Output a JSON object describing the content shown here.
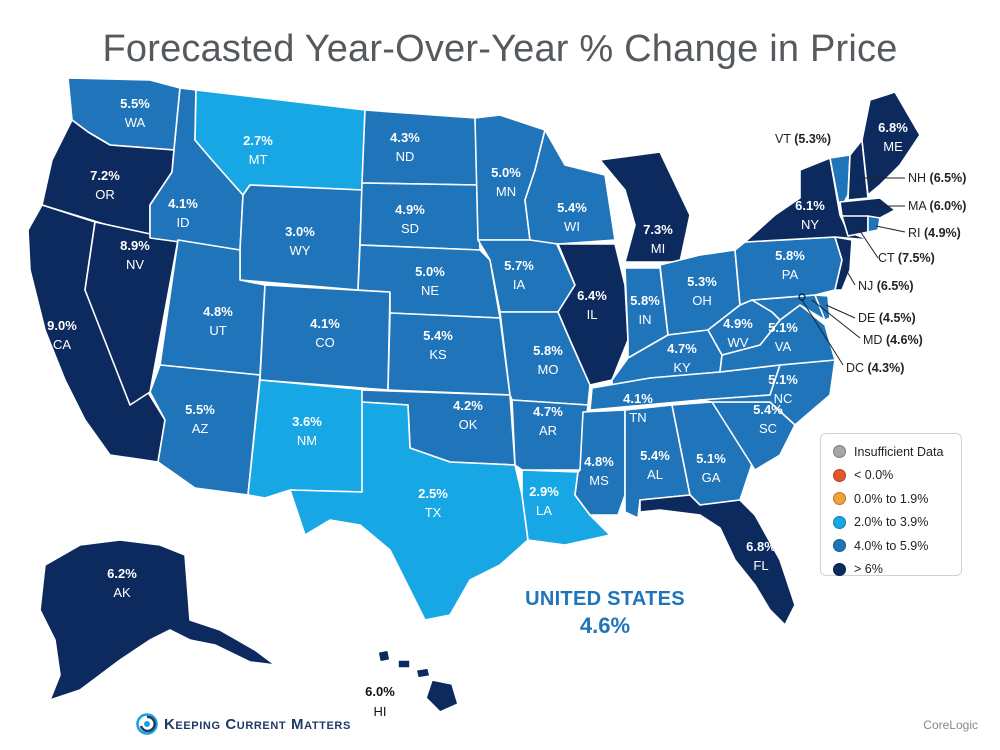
{
  "title": "Forecasted Year-Over-Year % Change in Price",
  "colors": {
    "insufficient": "#a6a6a6",
    "below_zero": "#e4572e",
    "zero_to_1_9": "#f2a23a",
    "two_to_3_9": "#17a7e5",
    "four_to_5_9": "#1f74ba",
    "above_6": "#0d2a5e"
  },
  "states": {
    "WA": {
      "abbr": "WA",
      "value": "5.5%"
    },
    "OR": {
      "abbr": "OR",
      "value": "7.2%"
    },
    "CA": {
      "abbr": "CA",
      "value": "9.0%"
    },
    "NV": {
      "abbr": "NV",
      "value": "8.9%"
    },
    "ID": {
      "abbr": "ID",
      "value": "4.1%"
    },
    "MT": {
      "abbr": "MT",
      "value": "2.7%"
    },
    "WY": {
      "abbr": "WY",
      "value": "3.0%"
    },
    "UT": {
      "abbr": "UT",
      "value": "4.8%"
    },
    "AZ": {
      "abbr": "AZ",
      "value": "5.5%"
    },
    "CO": {
      "abbr": "CO",
      "value": "4.1%"
    },
    "NM": {
      "abbr": "NM",
      "value": "3.6%"
    },
    "ND": {
      "abbr": "ND",
      "value": "4.3%"
    },
    "SD": {
      "abbr": "SD",
      "value": "4.9%"
    },
    "NE": {
      "abbr": "NE",
      "value": "5.0%"
    },
    "KS": {
      "abbr": "KS",
      "value": "5.4%"
    },
    "OK": {
      "abbr": "OK",
      "value": "4.2%"
    },
    "TX": {
      "abbr": "TX",
      "value": "2.5%"
    },
    "MN": {
      "abbr": "MN",
      "value": "5.0%"
    },
    "IA": {
      "abbr": "IA",
      "value": "5.7%"
    },
    "MO": {
      "abbr": "MO",
      "value": "5.8%"
    },
    "AR": {
      "abbr": "AR",
      "value": "4.7%"
    },
    "LA": {
      "abbr": "LA",
      "value": "2.9%"
    },
    "WI": {
      "abbr": "WI",
      "value": "5.4%"
    },
    "IL": {
      "abbr": "IL",
      "value": "6.4%"
    },
    "MI": {
      "abbr": "MI",
      "value": "7.3%"
    },
    "IN": {
      "abbr": "IN",
      "value": "5.8%"
    },
    "OH": {
      "abbr": "OH",
      "value": "5.3%"
    },
    "KY": {
      "abbr": "KY",
      "value": "4.7%"
    },
    "TN": {
      "abbr": "TN",
      "value": "4.1%"
    },
    "MS": {
      "abbr": "MS",
      "value": "4.8%"
    },
    "AL": {
      "abbr": "AL",
      "value": "5.4%"
    },
    "GA": {
      "abbr": "GA",
      "value": "5.1%"
    },
    "FL": {
      "abbr": "FL",
      "value": "6.8%"
    },
    "SC": {
      "abbr": "SC",
      "value": "5.4%"
    },
    "NC": {
      "abbr": "NC",
      "value": "5.1%"
    },
    "VA": {
      "abbr": "VA",
      "value": "5.1%"
    },
    "WV": {
      "abbr": "WV",
      "value": "4.9%"
    },
    "PA": {
      "abbr": "PA",
      "value": "5.8%"
    },
    "NY": {
      "abbr": "NY",
      "value": "6.1%"
    },
    "ME": {
      "abbr": "ME",
      "value": "6.8%"
    },
    "AK": {
      "abbr": "AK",
      "value": "6.2%"
    },
    "HI": {
      "abbr": "HI",
      "value": "6.0%"
    }
  },
  "callouts": {
    "VT": {
      "abbr": "VT",
      "value": "(5.3%)"
    },
    "NH": {
      "abbr": "NH",
      "value": "(6.5%)"
    },
    "MA": {
      "abbr": "MA",
      "value": "(6.0%)"
    },
    "RI": {
      "abbr": "RI",
      "value": "(4.9%)"
    },
    "CT": {
      "abbr": "CT",
      "value": "(7.5%)"
    },
    "NJ": {
      "abbr": "NJ",
      "value": "(6.5%)"
    },
    "DE": {
      "abbr": "DE",
      "value": "(4.5%)"
    },
    "MD": {
      "abbr": "MD",
      "value": "(4.6%)"
    },
    "DC": {
      "abbr": "DC",
      "value": "(4.3%)"
    }
  },
  "legend": [
    {
      "label": "Insufficient Data",
      "color": "#a6a6a6"
    },
    {
      "label": "< 0.0%",
      "color": "#e4572e"
    },
    {
      "label": "0.0% to 1.9%",
      "color": "#f2a23a"
    },
    {
      "label": "2.0% to 3.9%",
      "color": "#17a7e5"
    },
    {
      "label": "4.0% to 5.9%",
      "color": "#1f74ba"
    },
    {
      "label": "> 6%",
      "color": "#0d2a5e"
    }
  ],
  "national": {
    "name": "UNITED STATES",
    "value": "4.6%"
  },
  "brand": "Keeping Current Matters",
  "source": "CoreLogic"
}
